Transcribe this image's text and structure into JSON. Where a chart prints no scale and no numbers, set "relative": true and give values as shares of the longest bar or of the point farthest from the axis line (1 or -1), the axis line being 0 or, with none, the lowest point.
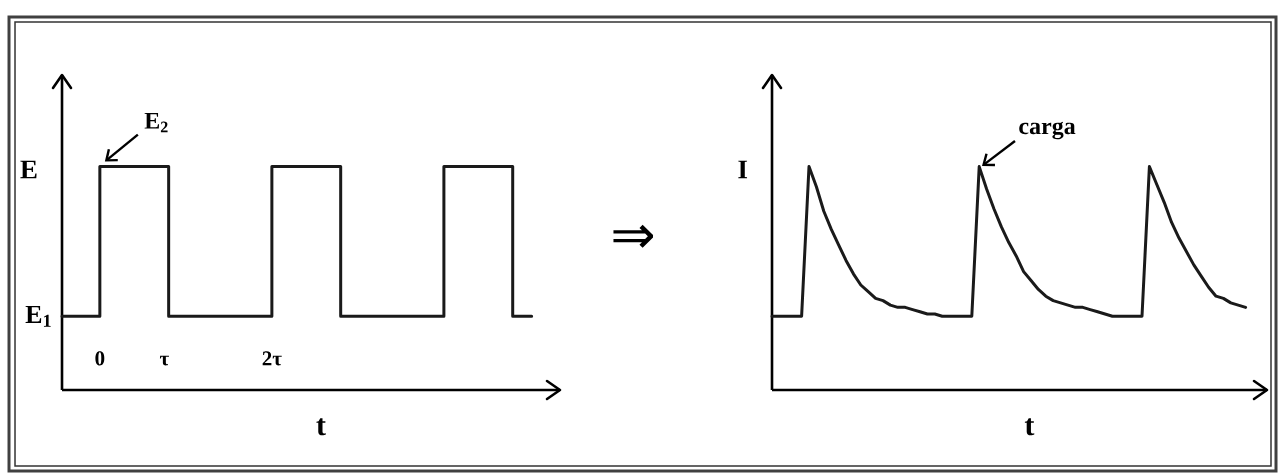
{
  "chart_data": [
    {
      "type": "line",
      "xlabel": "t",
      "ylabel": "E",
      "relative": true,
      "color": "#1a1a1a",
      "x": [
        -0.44,
        0,
        0,
        0.8,
        0.8,
        2,
        2,
        2.8,
        2.8,
        4,
        4,
        4.8,
        4.8,
        5.02
      ],
      "values": [
        0.33,
        0.33,
        1,
        1,
        0.33,
        0.33,
        1,
        1,
        0.33,
        0.33,
        1,
        1,
        0.33,
        0.33
      ],
      "xlim": [
        -0.44,
        5.35
      ],
      "xticks": [
        0,
        {
          "value": 0.75,
          "label": "τ"
        },
        {
          "value": 2,
          "label": "2τ"
        }
      ],
      "tick_labels": "x",
      "annotations": [
        {
          "text": "E$_{2}$",
          "x": 0,
          "y": 1
        },
        {
          "text": "E$_{1}$",
          "x": -0.44,
          "y": 0.33
        },
        "⇒"
      ]
    },
    {
      "type": "line",
      "xlabel": "t",
      "ylabel": "I",
      "relative": true,
      "color": "#1a1a1a",
      "categories": [
        null,
        null,
        null,
        null,
        null,
        null,
        null,
        null,
        null,
        null,
        null,
        null,
        null,
        null,
        null,
        null,
        null,
        null,
        null,
        null,
        null,
        null,
        null,
        null,
        null,
        null,
        null,
        null,
        null,
        null,
        null,
        null,
        null,
        null,
        null,
        null,
        null,
        null,
        null,
        null,
        null,
        null,
        null,
        null,
        null,
        null,
        null,
        null,
        null,
        null,
        null,
        null,
        null,
        null,
        null,
        null,
        null,
        null,
        null,
        null,
        null,
        null,
        null,
        null,
        null
      ],
      "values": [
        0.33,
        0.33,
        0.33,
        0.33,
        0.33,
        1,
        0.91,
        0.8,
        0.72,
        0.65,
        0.58,
        0.52,
        0.47,
        0.44,
        0.41,
        0.4,
        0.38,
        0.37,
        0.37,
        0.36,
        0.35,
        0.34,
        0.34,
        0.33,
        0.33,
        0.33,
        0.33,
        0.33,
        1,
        0.9,
        0.81,
        0.73,
        0.66,
        0.6,
        0.53,
        0.49,
        0.45,
        0.42,
        0.4,
        0.39,
        0.38,
        0.37,
        0.37,
        0.36,
        0.35,
        0.34,
        0.33,
        0.33,
        0.33,
        0.33,
        0.33,
        1,
        0.92,
        0.84,
        0.75,
        0.68,
        0.62,
        0.56,
        0.51,
        0.46,
        0.42,
        0.41,
        0.39,
        0.38,
        0.37
      ],
      "tick_labels": false,
      "annotations": [
        "carga"
      ]
    }
  ]
}
